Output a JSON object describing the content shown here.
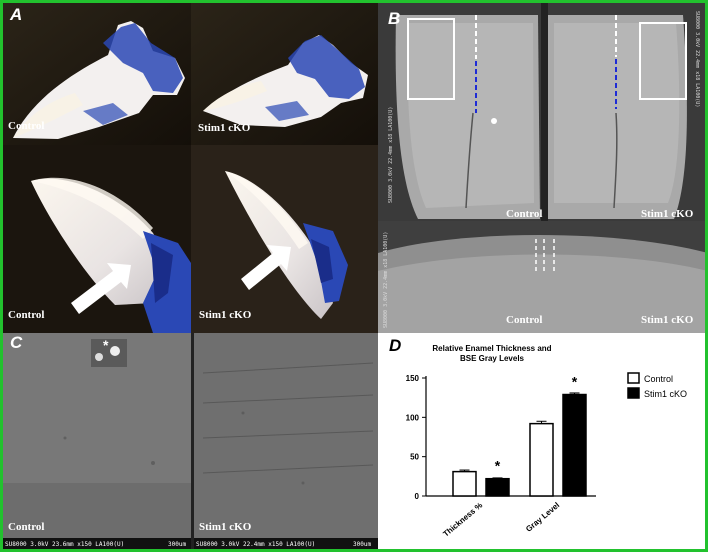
{
  "figure": {
    "panels": {
      "A": {
        "letter": "A",
        "labels": [
          "Control",
          "Stim1 cKO",
          "Control",
          "Stim1 cKO"
        ]
      },
      "B": {
        "letter": "B",
        "labels": [
          "Control",
          "Stim1 cKO",
          "Control",
          "Stim1 cKO"
        ],
        "microscope_captions": [
          "SU8000 3.0kV 22.4mm x18 LA100(U)",
          "SU8000 3.0kV 22.4mm x18 LA100(U)",
          "SU8000 3.0kV 22.4mm x18 LA100(U)"
        ]
      },
      "C": {
        "letter": "C",
        "labels": [
          "Control",
          "Stim1 cKO"
        ],
        "asterisk": "*",
        "scale_bars": [
          {
            "caption": "SU8000 3.0kV 23.6mm x150 LA100(U)",
            "scale": "300um"
          },
          {
            "caption": "SU8000 3.0kV 22.4mm x150 LA100(U)",
            "scale": "300um"
          }
        ]
      },
      "D": {
        "letter": "D"
      }
    },
    "colors": {
      "border": "#22c22e",
      "dashed_blue": "#1e2bd6",
      "stain_blue": "#2a48b5"
    }
  },
  "chart_data": {
    "type": "bar",
    "title": "Relative Enamel Thickness and BSE Gray Levels",
    "title_lines": [
      "Relative Enamel Thickness and",
      "BSE Gray Levels"
    ],
    "categories": [
      "Thickness %",
      "Gray Level"
    ],
    "series": [
      {
        "name": "Control",
        "values": [
          31,
          92
        ],
        "errors": [
          2,
          3
        ],
        "fill": "#ffffff"
      },
      {
        "name": "Stim1 cKO",
        "values": [
          22,
          129
        ],
        "errors": [
          1,
          2
        ],
        "fill": "#000000"
      }
    ],
    "ylim": [
      0,
      150
    ],
    "yticks": [
      "0",
      "50",
      "100",
      "150"
    ],
    "significance": [
      "*",
      "*"
    ],
    "legend_position": "top-right",
    "grid": false,
    "xlabel": "",
    "ylabel": ""
  }
}
